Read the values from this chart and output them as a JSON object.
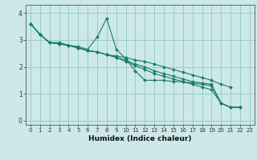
{
  "title": "",
  "xlabel": "Humidex (Indice chaleur)",
  "bg_color": "#cce8e8",
  "grid_color": "#99cccc",
  "line_color": "#1a7a6e",
  "xlim": [
    -0.5,
    23.5
  ],
  "ylim": [
    -0.15,
    4.3
  ],
  "xticks": [
    0,
    1,
    2,
    3,
    4,
    5,
    6,
    7,
    8,
    9,
    10,
    11,
    12,
    13,
    14,
    15,
    16,
    17,
    18,
    19,
    20,
    21,
    22,
    23
  ],
  "yticks": [
    0,
    1,
    2,
    3,
    4
  ],
  "series": [
    [
      3.6,
      3.2,
      2.9,
      2.9,
      2.8,
      2.75,
      2.65,
      3.1,
      3.8,
      2.65,
      2.3,
      1.85,
      1.5,
      1.5,
      1.5,
      1.45,
      1.45,
      1.4,
      1.35,
      1.3,
      0.65,
      0.5,
      0.5,
      null
    ],
    [
      3.6,
      3.2,
      2.9,
      2.85,
      2.8,
      2.7,
      2.6,
      2.55,
      2.45,
      2.4,
      2.35,
      2.25,
      2.2,
      2.1,
      2.0,
      1.9,
      1.8,
      1.7,
      1.6,
      1.5,
      1.35,
      1.25,
      null,
      null
    ],
    [
      3.6,
      3.2,
      2.9,
      2.85,
      2.8,
      2.7,
      2.6,
      2.55,
      2.45,
      2.35,
      2.25,
      2.1,
      2.0,
      1.85,
      1.75,
      1.65,
      1.55,
      1.45,
      1.4,
      1.35,
      0.65,
      0.5,
      0.5,
      null
    ],
    [
      3.6,
      3.2,
      2.9,
      2.85,
      2.8,
      2.7,
      2.6,
      2.55,
      2.45,
      2.35,
      2.2,
      2.05,
      1.9,
      1.75,
      1.65,
      1.55,
      1.45,
      1.35,
      1.25,
      1.15,
      0.65,
      0.5,
      0.5,
      null
    ]
  ]
}
